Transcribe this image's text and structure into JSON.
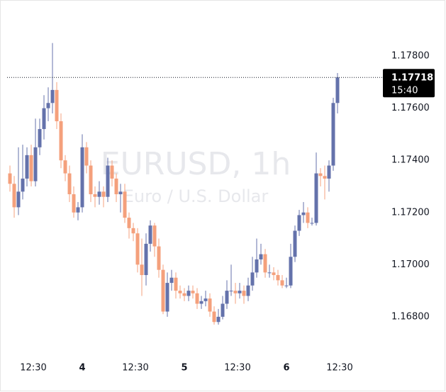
{
  "chart_data": {
    "type": "candlestick",
    "watermark_title": "EURUSD, 1h",
    "watermark_subtitle": "Euro / U.S. Dollar",
    "up_color": "#6472ab",
    "down_color": "#f4a07c",
    "x": [
      7,
      8,
      9,
      10,
      11,
      12,
      13,
      14,
      15,
      16,
      17,
      18,
      19,
      20,
      21,
      22,
      23,
      24,
      25,
      26,
      27,
      28,
      29,
      30,
      31,
      32,
      33,
      34,
      35,
      36,
      37,
      38,
      39,
      40,
      41,
      42,
      43,
      44,
      45,
      46,
      47,
      48,
      49,
      50,
      51,
      52,
      53,
      54,
      55,
      56,
      57,
      58,
      59,
      60,
      61,
      62,
      63,
      64,
      65,
      66,
      67,
      68,
      69,
      70,
      71,
      72,
      73,
      74,
      75,
      76,
      77,
      78,
      79,
      80,
      81,
      82,
      83,
      84
    ],
    "open": [
      1.1735,
      1.1731,
      1.1722,
      1.1728,
      1.1733,
      1.1742,
      1.1732,
      1.1745,
      1.1752,
      1.176,
      1.1762,
      1.1767,
      1.1755,
      1.174,
      1.1735,
      1.1727,
      1.172,
      1.1722,
      1.1745,
      1.1738,
      1.1727,
      1.1726,
      1.1728,
      1.1726,
      1.1738,
      1.1733,
      1.1727,
      1.1728,
      1.1718,
      1.1714,
      1.1712,
      1.17,
      1.1696,
      1.1708,
      1.1715,
      1.1707,
      1.1698,
      1.1682,
      1.1693,
      1.1695,
      1.169,
      1.1689,
      1.1688,
      1.169,
      1.1689,
      1.1685,
      1.1686,
      1.1687,
      1.1682,
      1.1678,
      1.168,
      1.1685,
      1.169,
      1.169,
      1.1689,
      1.169,
      1.1688,
      1.1692,
      1.1697,
      1.1702,
      1.1704,
      1.1697,
      1.1697,
      1.1696,
      1.1694,
      1.1692,
      1.1692,
      1.1703,
      1.1713,
      1.1719,
      1.172,
      1.1716,
      1.1716,
      1.1735,
      1.1734,
      1.1733,
      1.1738,
      1.1762
    ],
    "high": [
      1.1738,
      1.1734,
      1.1745,
      1.1746,
      1.1745,
      1.1746,
      1.1756,
      1.1756,
      1.1765,
      1.1768,
      1.1785,
      1.177,
      1.1758,
      1.1742,
      1.1738,
      1.173,
      1.1724,
      1.175,
      1.1747,
      1.174,
      1.173,
      1.1732,
      1.173,
      1.1741,
      1.174,
      1.1735,
      1.1731,
      1.1731,
      1.172,
      1.1716,
      1.1714,
      1.171,
      1.1712,
      1.1717,
      1.1716,
      1.171,
      1.17,
      1.1697,
      1.1698,
      1.1697,
      1.1692,
      1.1691,
      1.1692,
      1.1692,
      1.1691,
      1.1688,
      1.169,
      1.1689,
      1.1684,
      1.1683,
      1.1688,
      1.1694,
      1.17,
      1.1693,
      1.1693,
      1.1692,
      1.1695,
      1.1703,
      1.171,
      1.1708,
      1.1706,
      1.17,
      1.1699,
      1.1698,
      1.1696,
      1.1695,
      1.1708,
      1.1715,
      1.1721,
      1.1724,
      1.1722,
      1.1718,
      1.1743,
      1.1737,
      1.1738,
      1.174,
      1.1764,
      1.17735
    ],
    "low": [
      1.1728,
      1.1718,
      1.1719,
      1.1725,
      1.173,
      1.173,
      1.173,
      1.1742,
      1.1748,
      1.1755,
      1.1758,
      1.1752,
      1.1737,
      1.1732,
      1.1724,
      1.1718,
      1.1717,
      1.172,
      1.1735,
      1.1724,
      1.1722,
      1.1723,
      1.1722,
      1.1724,
      1.173,
      1.1724,
      1.172,
      1.1716,
      1.171,
      1.1709,
      1.1697,
      1.1688,
      1.1692,
      1.1705,
      1.1703,
      1.1695,
      1.1681,
      1.168,
      1.169,
      1.1687,
      1.1687,
      1.1686,
      1.1686,
      1.1687,
      1.1683,
      1.1683,
      1.1684,
      1.168,
      1.1677,
      1.1677,
      1.1679,
      1.1683,
      1.1688,
      1.1685,
      1.1687,
      1.1685,
      1.1686,
      1.169,
      1.1695,
      1.17,
      1.1695,
      1.1695,
      1.1694,
      1.1692,
      1.1691,
      1.1691,
      1.1691,
      1.1701,
      1.1711,
      1.1716,
      1.1714,
      1.1715,
      1.1715,
      1.173,
      1.1725,
      1.1728,
      1.1736,
      1.1758
    ],
    "close": [
      1.1731,
      1.1722,
      1.1728,
      1.1733,
      1.1742,
      1.1732,
      1.1745,
      1.1752,
      1.176,
      1.1762,
      1.1767,
      1.1755,
      1.174,
      1.1735,
      1.1727,
      1.172,
      1.1722,
      1.1745,
      1.1738,
      1.1727,
      1.1726,
      1.1728,
      1.1726,
      1.1738,
      1.1733,
      1.1727,
      1.1728,
      1.1718,
      1.1714,
      1.1712,
      1.17,
      1.1696,
      1.1708,
      1.1715,
      1.1707,
      1.1698,
      1.1682,
      1.1693,
      1.1695,
      1.169,
      1.1689,
      1.1688,
      1.169,
      1.1689,
      1.1685,
      1.1686,
      1.1687,
      1.1682,
      1.1678,
      1.168,
      1.1685,
      1.169,
      1.169,
      1.1689,
      1.169,
      1.1688,
      1.1692,
      1.1697,
      1.1702,
      1.1704,
      1.1697,
      1.1697,
      1.1696,
      1.1694,
      1.1692,
      1.1692,
      1.1703,
      1.1713,
      1.1719,
      1.172,
      1.1716,
      1.1716,
      1.1735,
      1.1734,
      1.1733,
      1.1738,
      1.1762,
      1.17718
    ],
    "last_price": 1.17718,
    "countdown": "15:40",
    "xlim": [
      6.33,
      94.67
    ],
    "xticks": [
      {
        "value": 12.5,
        "label": "12:30"
      },
      {
        "value": 24,
        "label": "4"
      },
      {
        "value": 36.5,
        "label": "12:30"
      },
      {
        "value": 48,
        "label": "5"
      },
      {
        "value": 60.5,
        "label": "12:30"
      },
      {
        "value": 72,
        "label": "6"
      },
      {
        "value": 84.5,
        "label": "12:30"
      }
    ],
    "ylim": [
      1.16642,
      1.18015
    ],
    "yticks": [
      {
        "value": 1.168,
        "label": "1.16800"
      },
      {
        "value": 1.17,
        "label": "1.17000"
      },
      {
        "value": 1.172,
        "label": "1.17200"
      },
      {
        "value": 1.174,
        "label": "1.17400"
      },
      {
        "value": 1.176,
        "label": "1.17600"
      },
      {
        "value": 1.178,
        "label": "1.17800"
      }
    ]
  }
}
